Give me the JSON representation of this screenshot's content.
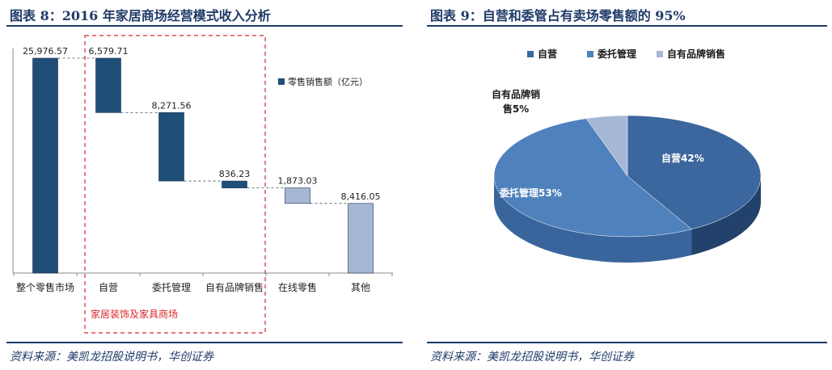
{
  "left": {
    "title": "图表 8：2016 年家居商场经营模式收入分析",
    "source": "资料来源：美凯龙招股说明书，华创证券",
    "highlight_label": "家居装饰及家具商场"
  },
  "right": {
    "title": "图表 9：自营和委管占有卖场零售额的 95%",
    "source": "资料来源：美凯龙招股说明书，华创证券"
  },
  "chart_data": [
    {
      "type": "bar",
      "subtype": "waterfall",
      "title": "",
      "categories": [
        "整个零售市场",
        "自营",
        "委托管理",
        "自有品牌销售",
        "在线零售",
        "其他"
      ],
      "series": [
        {
          "name": "零售销售额（亿元）",
          "values": [
            25976.57,
            6579.71,
            8271.56,
            836.23,
            1873.03,
            8416.05
          ],
          "value_labels": [
            "25,976.57",
            "6,579.71",
            "8,271.56",
            "836.23",
            "1,873.03",
            "8,416.05"
          ]
        }
      ],
      "ylim": [
        0,
        25976.57
      ],
      "grid": false,
      "legend": "top-right",
      "colors": {
        "dark": "#1f4e79",
        "light": "#a5b7d5"
      }
    },
    {
      "type": "pie",
      "style": "3d",
      "title": "",
      "labels": [
        "自营",
        "委托管理",
        "自有品牌销售"
      ],
      "values": [
        42,
        53,
        5
      ],
      "slice_labels": [
        "自营42%",
        "委托管理53%",
        "自有品牌销售5%"
      ],
      "legend": "top",
      "colors": [
        "#3b679e",
        "#4f81bd",
        "#a5b7d5"
      ]
    }
  ]
}
